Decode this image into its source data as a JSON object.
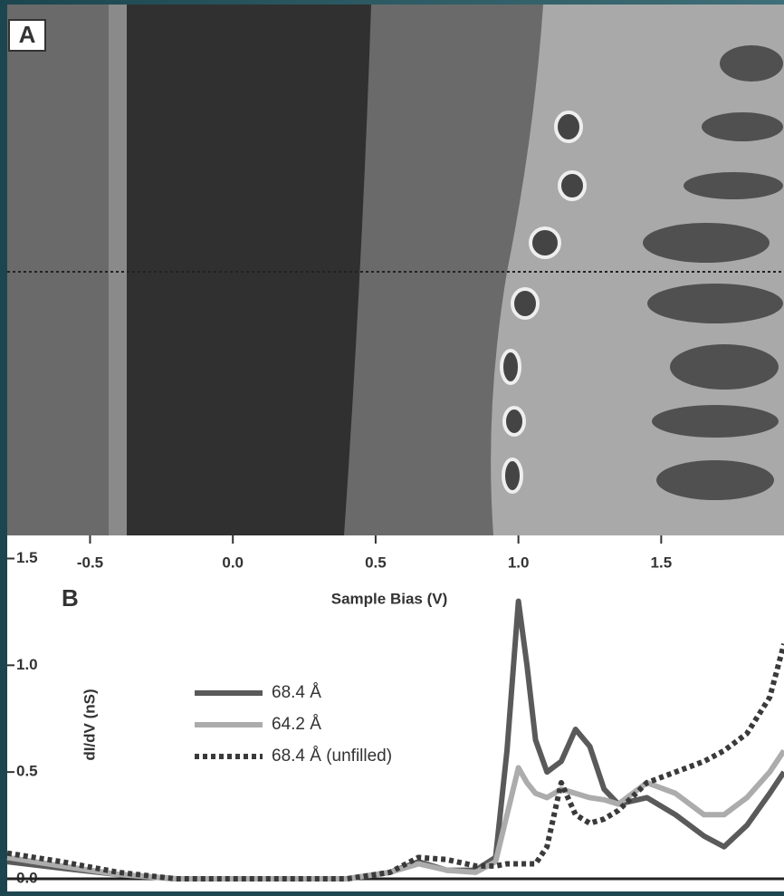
{
  "chart_data": {
    "type": "line",
    "panel_labels": [
      "A",
      "B"
    ],
    "xlabel": "Sample Bias (V)",
    "ylabel": "dI/dV (nS)",
    "x": [
      -0.79,
      -0.6,
      -0.4,
      -0.2,
      0,
      0.2,
      0.4,
      0.55,
      0.65,
      0.75,
      0.85,
      0.92,
      0.96,
      1.0,
      1.03,
      1.06,
      1.1,
      1.15,
      1.2,
      1.25,
      1.3,
      1.35,
      1.45,
      1.55,
      1.65,
      1.72,
      1.8,
      1.88,
      1.93
    ],
    "series": [
      {
        "name": "68.4 Å",
        "color": "#5a5a5a",
        "dash": false,
        "values": [
          0.08,
          0.05,
          0.02,
          0,
          0,
          0,
          0,
          0.03,
          0.08,
          0.04,
          0.04,
          0.1,
          0.6,
          1.3,
          1.0,
          0.65,
          0.5,
          0.55,
          0.7,
          0.62,
          0.42,
          0.35,
          0.38,
          0.3,
          0.2,
          0.15,
          0.25,
          0.4,
          0.5
        ]
      },
      {
        "name": "64.2 Å",
        "color": "#acacac",
        "dash": false,
        "values": [
          0.1,
          0.06,
          0.02,
          0,
          0,
          0,
          0,
          0.03,
          0.07,
          0.04,
          0.03,
          0.08,
          0.3,
          0.52,
          0.45,
          0.4,
          0.38,
          0.42,
          0.4,
          0.38,
          0.37,
          0.35,
          0.45,
          0.4,
          0.3,
          0.3,
          0.38,
          0.5,
          0.6
        ]
      },
      {
        "name": "68.4 Å (unfilled)",
        "color": "#3a3a3a",
        "dash": true,
        "values": [
          0.12,
          0.08,
          0.03,
          0,
          0,
          0,
          0,
          0.03,
          0.1,
          0.09,
          0.06,
          0.06,
          0.07,
          0.07,
          0.07,
          0.07,
          0.15,
          0.45,
          0.3,
          0.26,
          0.28,
          0.32,
          0.45,
          0.5,
          0.55,
          0.6,
          0.68,
          0.85,
          1.1
        ]
      }
    ],
    "xlim": [
      -0.79,
      1.93
    ],
    "ylim": [
      0,
      1.57
    ],
    "xticks": [
      -0.5,
      {
        "value": 0,
        "label": "0.0"
      },
      0.5,
      {
        "value": 1,
        "label": "1.0"
      },
      1.5
    ],
    "yticks": [
      {
        "value": 0,
        "label": "0.0"
      },
      0.5,
      {
        "value": 1,
        "label": "1.0"
      },
      1.5
    ]
  }
}
